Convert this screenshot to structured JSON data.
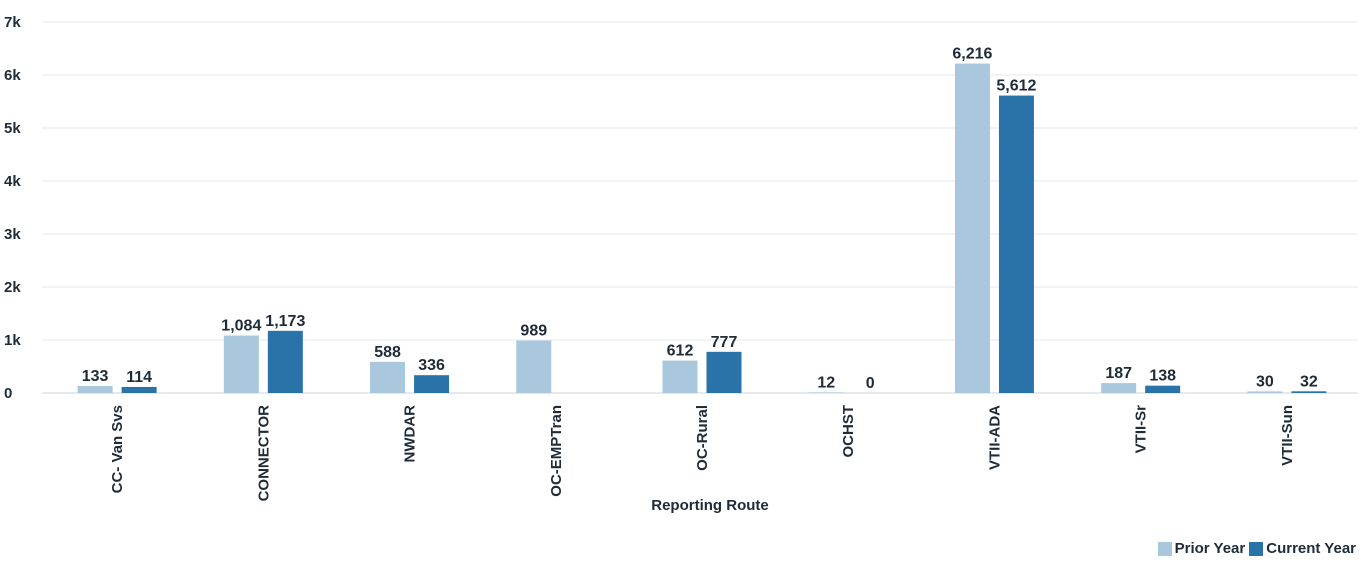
{
  "chart_data": {
    "type": "bar",
    "xlabel": "Reporting Route",
    "ylabel": "",
    "ylim": [
      0,
      7000
    ],
    "yticks": [
      0,
      1000,
      2000,
      3000,
      4000,
      5000,
      6000,
      7000
    ],
    "ytick_labels": [
      "0",
      "1k",
      "2k",
      "3k",
      "4k",
      "5k",
      "6k",
      "7k"
    ],
    "grid": true,
    "legend_position": "bottom-right",
    "categories": [
      "CC- Van Svs",
      "CONNECTOR",
      "NWDAR",
      "OC-EMPTran",
      "OC-Rural",
      "OCHST",
      "VTII-ADA",
      "VTII-Sr",
      "VTII-Sun"
    ],
    "series": [
      {
        "name": "Prior Year",
        "color": "#a9c7dd",
        "values": [
          133,
          1084,
          588,
          989,
          612,
          12,
          6216,
          187,
          30
        ],
        "labels": [
          "133",
          "1,084",
          "588",
          "989",
          "612",
          "12",
          "6,216",
          "187",
          "30"
        ]
      },
      {
        "name": "Current Year",
        "color": "#2a73a8",
        "values": [
          114,
          1173,
          336,
          null,
          777,
          0,
          5612,
          138,
          32
        ],
        "labels": [
          "114",
          "1,173",
          "336",
          "",
          "777",
          "0",
          "5,612",
          "138",
          "32"
        ]
      }
    ]
  }
}
